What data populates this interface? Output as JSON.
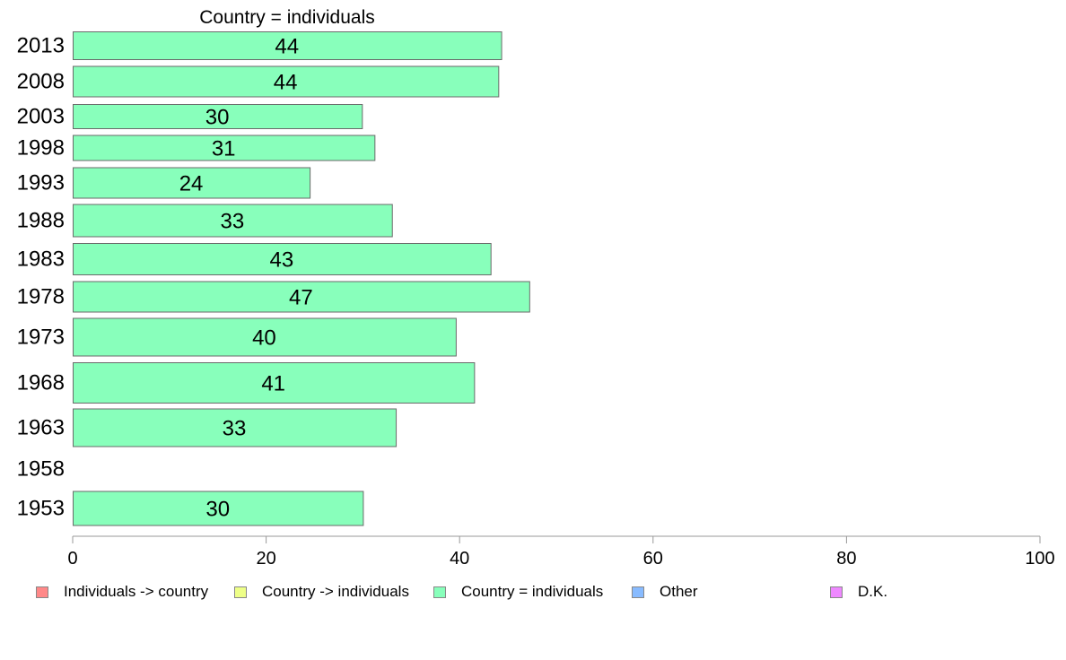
{
  "chart_data": {
    "type": "bar",
    "orientation": "horizontal",
    "title": "Country = individuals",
    "categories": [
      "2013",
      "2008",
      "2003",
      "1998",
      "1993",
      "1988",
      "1983",
      "1978",
      "1973",
      "1968",
      "1963",
      "1958",
      "1953"
    ],
    "series": [
      {
        "name": "Country = individuals",
        "color": "#88ffbb",
        "values": [
          44.3,
          44.0,
          29.9,
          31.2,
          24.5,
          33.0,
          43.2,
          47.2,
          39.6,
          41.5,
          33.4,
          null,
          30.0
        ],
        "labels": [
          "44",
          "44",
          "30",
          "31",
          "24",
          "33",
          "43",
          "47",
          "40",
          "41",
          "33",
          "",
          "30"
        ]
      }
    ],
    "xlim": [
      0,
      100
    ],
    "xticks": [
      "0",
      "20",
      "40",
      "60",
      "80",
      "100"
    ],
    "grid": false,
    "legend": [
      {
        "label": "Individuals -> country",
        "color": "#ff8888"
      },
      {
        "label": "Country -> individuals",
        "color": "#eeff88"
      },
      {
        "label": "Country = individuals",
        "color": "#88ffbb"
      },
      {
        "label": "Other",
        "color": "#88bbff"
      },
      {
        "label": "D.K.",
        "color": "#ee88ff"
      }
    ],
    "legend_position": "bottom"
  }
}
